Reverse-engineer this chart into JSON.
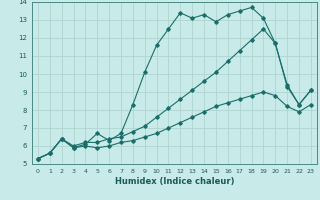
{
  "xlabel": "Humidex (Indice chaleur)",
  "bg_color": "#c8eae8",
  "line_color": "#1a6e6a",
  "grid_color": "#b0d4d0",
  "xlim": [
    -0.5,
    23.5
  ],
  "ylim": [
    5,
    14
  ],
  "xticks": [
    0,
    1,
    2,
    3,
    4,
    5,
    6,
    7,
    8,
    9,
    10,
    11,
    12,
    13,
    14,
    15,
    16,
    17,
    18,
    19,
    20,
    21,
    22,
    23
  ],
  "yticks": [
    5,
    6,
    7,
    8,
    9,
    10,
    11,
    12,
    13,
    14
  ],
  "line1_x": [
    0,
    1,
    2,
    3,
    4,
    5,
    6,
    7,
    8,
    9,
    10,
    11,
    12,
    13,
    14,
    15,
    16,
    17,
    18,
    19,
    20,
    21,
    22,
    23
  ],
  "line1_y": [
    5.3,
    5.6,
    6.4,
    5.9,
    6.1,
    6.7,
    6.3,
    6.7,
    8.3,
    10.1,
    11.6,
    12.5,
    13.4,
    13.1,
    13.3,
    12.9,
    13.3,
    13.5,
    13.7,
    13.1,
    11.7,
    9.4,
    8.3,
    9.1
  ],
  "line2_x": [
    0,
    1,
    2,
    3,
    4,
    5,
    6,
    7,
    8,
    9,
    10,
    11,
    12,
    13,
    14,
    15,
    16,
    17,
    18,
    19,
    20,
    21,
    22,
    23
  ],
  "line2_y": [
    5.3,
    5.6,
    6.4,
    6.0,
    6.2,
    6.2,
    6.4,
    6.5,
    6.8,
    7.1,
    7.6,
    8.1,
    8.6,
    9.1,
    9.6,
    10.1,
    10.7,
    11.3,
    11.9,
    12.5,
    11.7,
    9.3,
    8.3,
    9.1
  ],
  "line3_x": [
    0,
    1,
    2,
    3,
    4,
    5,
    6,
    7,
    8,
    9,
    10,
    11,
    12,
    13,
    14,
    15,
    16,
    17,
    18,
    19,
    20,
    21,
    22,
    23
  ],
  "line3_y": [
    5.3,
    5.6,
    6.4,
    5.9,
    6.0,
    5.9,
    6.0,
    6.2,
    6.3,
    6.5,
    6.7,
    7.0,
    7.3,
    7.6,
    7.9,
    8.2,
    8.4,
    8.6,
    8.8,
    9.0,
    8.8,
    8.2,
    7.9,
    8.3
  ]
}
